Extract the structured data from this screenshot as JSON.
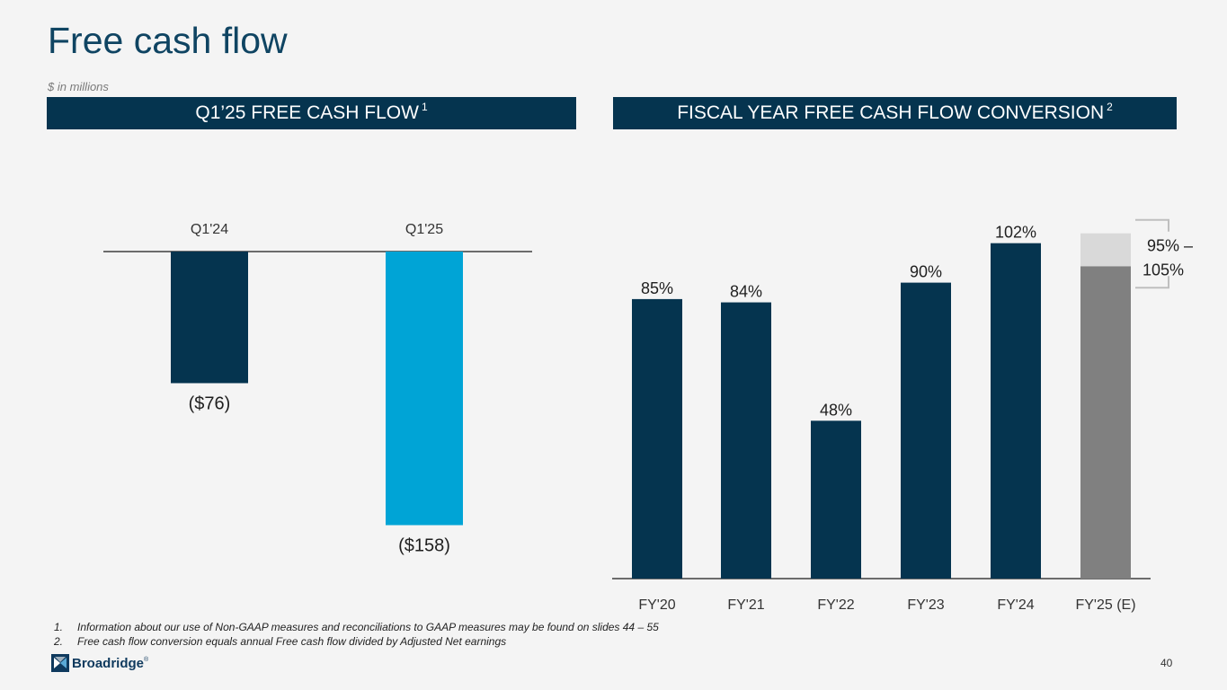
{
  "title": "Free cash flow",
  "subtitle": "$ in millions",
  "banners": {
    "left": {
      "label": "Q1’25 FREE CASH FLOW",
      "superscript": "1"
    },
    "right": {
      "label": "FISCAL YEAR FREE CASH FLOW CONVERSION",
      "superscript": "2"
    }
  },
  "chart_data": [
    {
      "type": "bar",
      "title": "Q1’25 FREE CASH FLOW",
      "unit": "$ in millions",
      "categories": [
        "Q1'24",
        "Q1'25"
      ],
      "values": [
        -76,
        -158
      ],
      "labels": [
        "($76)",
        "($158)"
      ],
      "colors": [
        "#05344f",
        "#00a4d6"
      ],
      "ylim": [
        -165,
        0
      ],
      "category_axis_position": "top"
    },
    {
      "type": "bar",
      "title": "FISCAL YEAR FREE CASH FLOW CONVERSION",
      "categories": [
        "FY'20",
        "FY'21",
        "FY'22",
        "FY'23",
        "FY'24",
        "FY'25 (E)"
      ],
      "values": [
        85,
        84,
        48,
        90,
        102,
        95
      ],
      "labels": [
        "85%",
        "84%",
        "48%",
        "90%",
        "102%",
        ""
      ],
      "colors": [
        "#05344f",
        "#05344f",
        "#05344f",
        "#05344f",
        "#05344f",
        "#808080"
      ],
      "range_series": {
        "category": "FY'25 (E)",
        "low": 95,
        "high": 105,
        "color": "#d9d9d9",
        "label_line1": "95% –",
        "label_line2": "105%"
      },
      "ylim": [
        0,
        110
      ]
    }
  ],
  "footnotes": [
    {
      "num": "1.",
      "text": "Information about our use of Non-GAAP measures and reconciliations to GAAP measures may be found on slides 44 – 55"
    },
    {
      "num": "2.",
      "text": "Free cash flow conversion equals annual Free cash flow divided by Adjusted Net earnings"
    }
  ],
  "logo": {
    "text": "Broadridge",
    "tm": "®",
    "icon": "broadridge-logo-icon"
  },
  "page_number": "40",
  "colors": {
    "navy": "#05344f",
    "cyan": "#00a4d6",
    "gray": "#808080",
    "light_gray": "#d9d9d9",
    "title": "#0f4462"
  }
}
